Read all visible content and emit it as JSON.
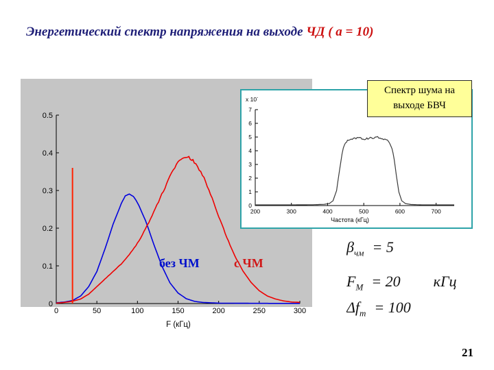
{
  "title": {
    "main": "Энергетический спектр напряжения на выходе ",
    "highlight": "ЧД ( a = 10)"
  },
  "callout": {
    "line1": "Спектр шума на",
    "line2": "выходе БВЧ"
  },
  "main_chart_labels": {
    "bez": "без ЧМ",
    "s": "с ЧМ"
  },
  "formulas": {
    "beta": {
      "sym": "β",
      "sub": "чм",
      "value": "= 5"
    },
    "f_mod": {
      "sym": "F",
      "sub": "М",
      "value": "= 20",
      "unit": "кГц"
    },
    "delta_f": {
      "sym": "Δf",
      "sub": "m",
      "value": "= 100"
    }
  },
  "page_number": "21",
  "colors": {
    "title_navy": "#1f1f78",
    "title_red": "#cc1111",
    "label_blue": "#0011cc",
    "label_red": "#d01818",
    "callout_bg": "#ffff99",
    "callout_border": "#2b2b2b",
    "inset_border": "#2da3a8",
    "panel_gray": "#c5c5c5"
  },
  "chart_data": [
    {
      "type": "line",
      "title": "Энергетический спектр напряжения на выходе ЧД",
      "xlabel": "F (кГц)",
      "ylabel": "",
      "xlim": [
        0,
        300
      ],
      "ylim": [
        0,
        0.5
      ],
      "xticks": [
        0,
        50,
        100,
        150,
        200,
        250,
        300
      ],
      "yticks": [
        0,
        0.1,
        0.2,
        0.3,
        0.4,
        0.5
      ],
      "grid": false,
      "background": "gray",
      "series": [
        {
          "name": "без ЧМ",
          "color": "#0000dd",
          "noise": 0.5,
          "x": [
            0,
            10,
            20,
            30,
            40,
            50,
            60,
            70,
            80,
            85,
            90,
            95,
            100,
            110,
            120,
            130,
            140,
            150,
            160,
            170,
            180,
            200,
            250,
            300
          ],
          "y": [
            0.002,
            0.004,
            0.008,
            0.02,
            0.045,
            0.085,
            0.145,
            0.21,
            0.265,
            0.285,
            0.29,
            0.285,
            0.268,
            0.22,
            0.158,
            0.1,
            0.055,
            0.028,
            0.013,
            0.006,
            0.003,
            0.001,
            0.0005,
            0.0003
          ]
        },
        {
          "name": "с ЧМ",
          "color": "#ee0000",
          "noise": 2.2,
          "x": [
            0,
            10,
            20,
            30,
            40,
            50,
            60,
            70,
            80,
            90,
            100,
            110,
            120,
            130,
            140,
            150,
            155,
            160,
            165,
            170,
            180,
            190,
            200,
            210,
            220,
            230,
            240,
            250,
            260,
            270,
            280,
            290,
            300
          ],
          "y": [
            0.001,
            0.003,
            0.006,
            0.012,
            0.025,
            0.045,
            0.065,
            0.085,
            0.105,
            0.13,
            0.16,
            0.198,
            0.243,
            0.29,
            0.337,
            0.376,
            0.385,
            0.39,
            0.386,
            0.376,
            0.342,
            0.29,
            0.232,
            0.176,
            0.126,
            0.086,
            0.056,
            0.034,
            0.02,
            0.012,
            0.007,
            0.004,
            0.003
          ]
        }
      ],
      "annotations": [
        {
          "type": "spike",
          "x": 20,
          "y": 0.36,
          "color": "#ff2200",
          "note": "вертикальный пик"
        }
      ]
    },
    {
      "type": "line",
      "title": "Спектр шума на выходе БВЧ",
      "xlabel": "Частота (кГц)",
      "ylabel": "",
      "exp_label": "x 10",
      "exp_sup": "-",
      "xlim": [
        200,
        750
      ],
      "ylim": [
        0,
        7
      ],
      "xticks": [
        200,
        300,
        400,
        500,
        600,
        700
      ],
      "yticks": [
        0,
        1,
        2,
        3,
        4,
        5,
        6,
        7
      ],
      "grid": false,
      "background": "white",
      "series": [
        {
          "name": "спектр шума БВЧ",
          "color": "#3a3a3a",
          "noise": 1.5,
          "x": [
            200,
            300,
            360,
            390,
            405,
            415,
            425,
            433,
            440,
            447,
            455,
            465,
            475,
            485,
            495,
            505,
            515,
            525,
            535,
            545,
            555,
            565,
            572,
            578,
            584,
            590,
            597,
            605,
            615,
            630,
            660,
            700,
            750
          ],
          "y": [
            0.05,
            0.05,
            0.06,
            0.09,
            0.15,
            0.35,
            1.1,
            2.6,
            3.8,
            4.5,
            4.75,
            4.85,
            4.9,
            4.95,
            4.88,
            4.85,
            4.9,
            4.95,
            5.0,
            4.93,
            4.87,
            4.75,
            4.55,
            4.2,
            3.4,
            2.2,
            1.0,
            0.35,
            0.15,
            0.08,
            0.05,
            0.05,
            0.05
          ]
        }
      ]
    }
  ]
}
